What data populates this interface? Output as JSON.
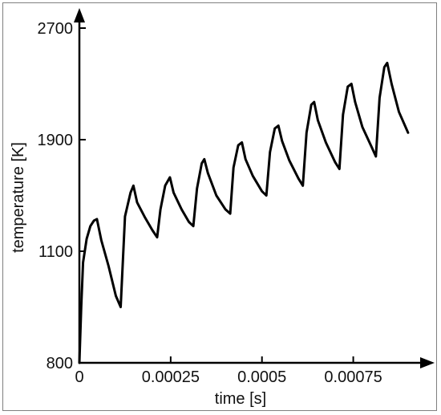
{
  "chart_data": {
    "type": "line",
    "title": "",
    "xlabel": "time [s]",
    "ylabel": "temperature [K]",
    "xlim": [
      0,
      0.00092
    ],
    "ylim": [
      800,
      2700
    ],
    "x_ticks": [
      0,
      0.00025,
      0.0005,
      0.00075
    ],
    "x_tick_labels": [
      "0",
      "0.00025",
      "0.0005",
      "0.00075"
    ],
    "y_ticks": [
      800,
      1100,
      1900,
      2700
    ],
    "y_tick_labels": [
      "800",
      "1100",
      "1900",
      "2700"
    ],
    "y_tick_positions_note": "",
    "grid": false,
    "series": [
      {
        "color": "#000000",
        "x": [
          0,
          5e-06,
          1e-05,
          2e-05,
          3e-05,
          4e-05,
          4.8e-05,
          6e-05,
          8e-05,
          0.0001,
          0.000113,
          0.000125,
          0.00014,
          0.000148,
          0.000158,
          0.00018,
          0.0002,
          0.000213,
          0.000222,
          0.000235,
          0.000248,
          0.000258,
          0.00028,
          0.0003,
          0.000312,
          0.000322,
          0.000335,
          0.000342,
          0.000352,
          0.000375,
          0.0004,
          0.000413,
          0.000422,
          0.000435,
          0.000445,
          0.000455,
          0.000475,
          0.0005,
          0.000512,
          0.000522,
          0.000535,
          0.000545,
          0.000555,
          0.000575,
          0.0006,
          0.000612,
          0.000622,
          0.000635,
          0.000643,
          0.000653,
          0.000675,
          0.0007,
          0.000712,
          0.000722,
          0.000735,
          0.000745,
          0.000755,
          0.000775,
          0.0008,
          0.000812,
          0.000822,
          0.000835,
          0.000843,
          0.000855,
          0.000875,
          0.0009
        ],
        "y": [
          800,
          950,
          1070,
          1190,
          1280,
          1320,
          1330,
          1180,
          1060,
          980,
          950,
          1350,
          1520,
          1570,
          1450,
          1340,
          1250,
          1200,
          1400,
          1570,
          1630,
          1520,
          1400,
          1310,
          1280,
          1550,
          1730,
          1760,
          1660,
          1500,
          1400,
          1370,
          1700,
          1860,
          1880,
          1760,
          1640,
          1530,
          1500,
          1810,
          1980,
          2000,
          1890,
          1750,
          1620,
          1570,
          1950,
          2150,
          2170,
          2040,
          1880,
          1740,
          1690,
          2080,
          2280,
          2300,
          2170,
          1990,
          1850,
          1780,
          2200,
          2420,
          2450,
          2300,
          2100,
          1950
        ]
      }
    ]
  }
}
